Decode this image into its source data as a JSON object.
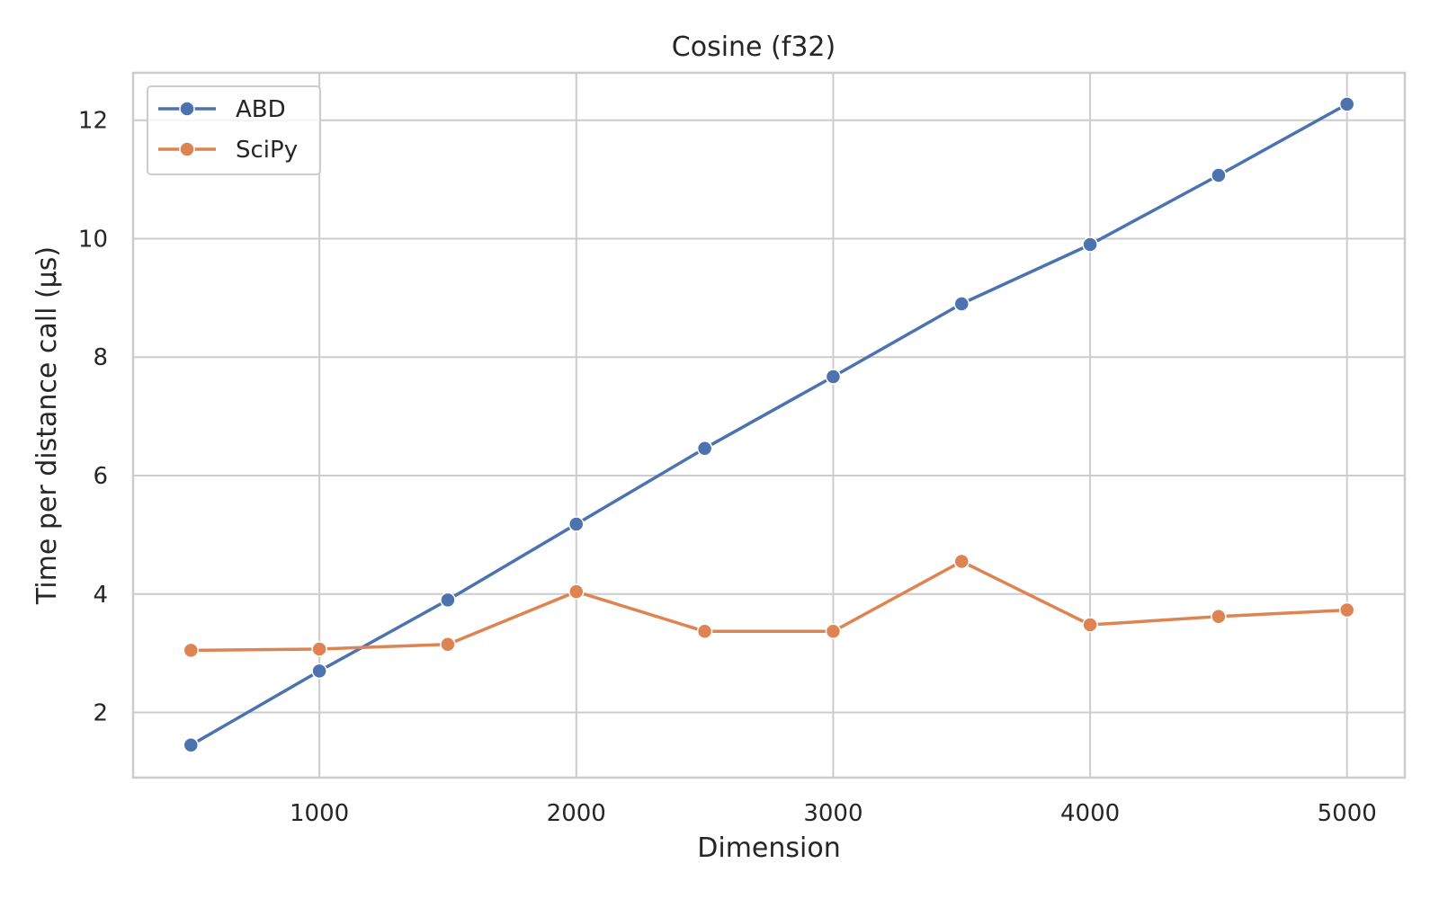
{
  "chart_data": {
    "type": "line",
    "title": "Cosine (f32)",
    "xlabel": "Dimension",
    "ylabel": "Time per distance call (µs)",
    "x": [
      500,
      1000,
      1500,
      2000,
      2500,
      3000,
      3500,
      4000,
      4500,
      5000
    ],
    "xlim": [
      275,
      5225
    ],
    "ylim": [
      0.9,
      12.8
    ],
    "xticks": [
      1000,
      2000,
      3000,
      4000,
      5000
    ],
    "yticks": [
      2,
      4,
      6,
      8,
      10,
      12
    ],
    "grid": true,
    "legend_position": "top-left",
    "series": [
      {
        "name": "ABD",
        "color": "#4c72b0",
        "values": [
          1.45,
          2.7,
          3.9,
          5.18,
          6.46,
          7.67,
          8.9,
          9.9,
          11.07,
          12.27
        ]
      },
      {
        "name": "SciPy",
        "color": "#dd8452",
        "values": [
          3.05,
          3.07,
          3.15,
          4.04,
          3.37,
          3.37,
          4.55,
          3.48,
          3.62,
          3.73
        ]
      }
    ]
  }
}
